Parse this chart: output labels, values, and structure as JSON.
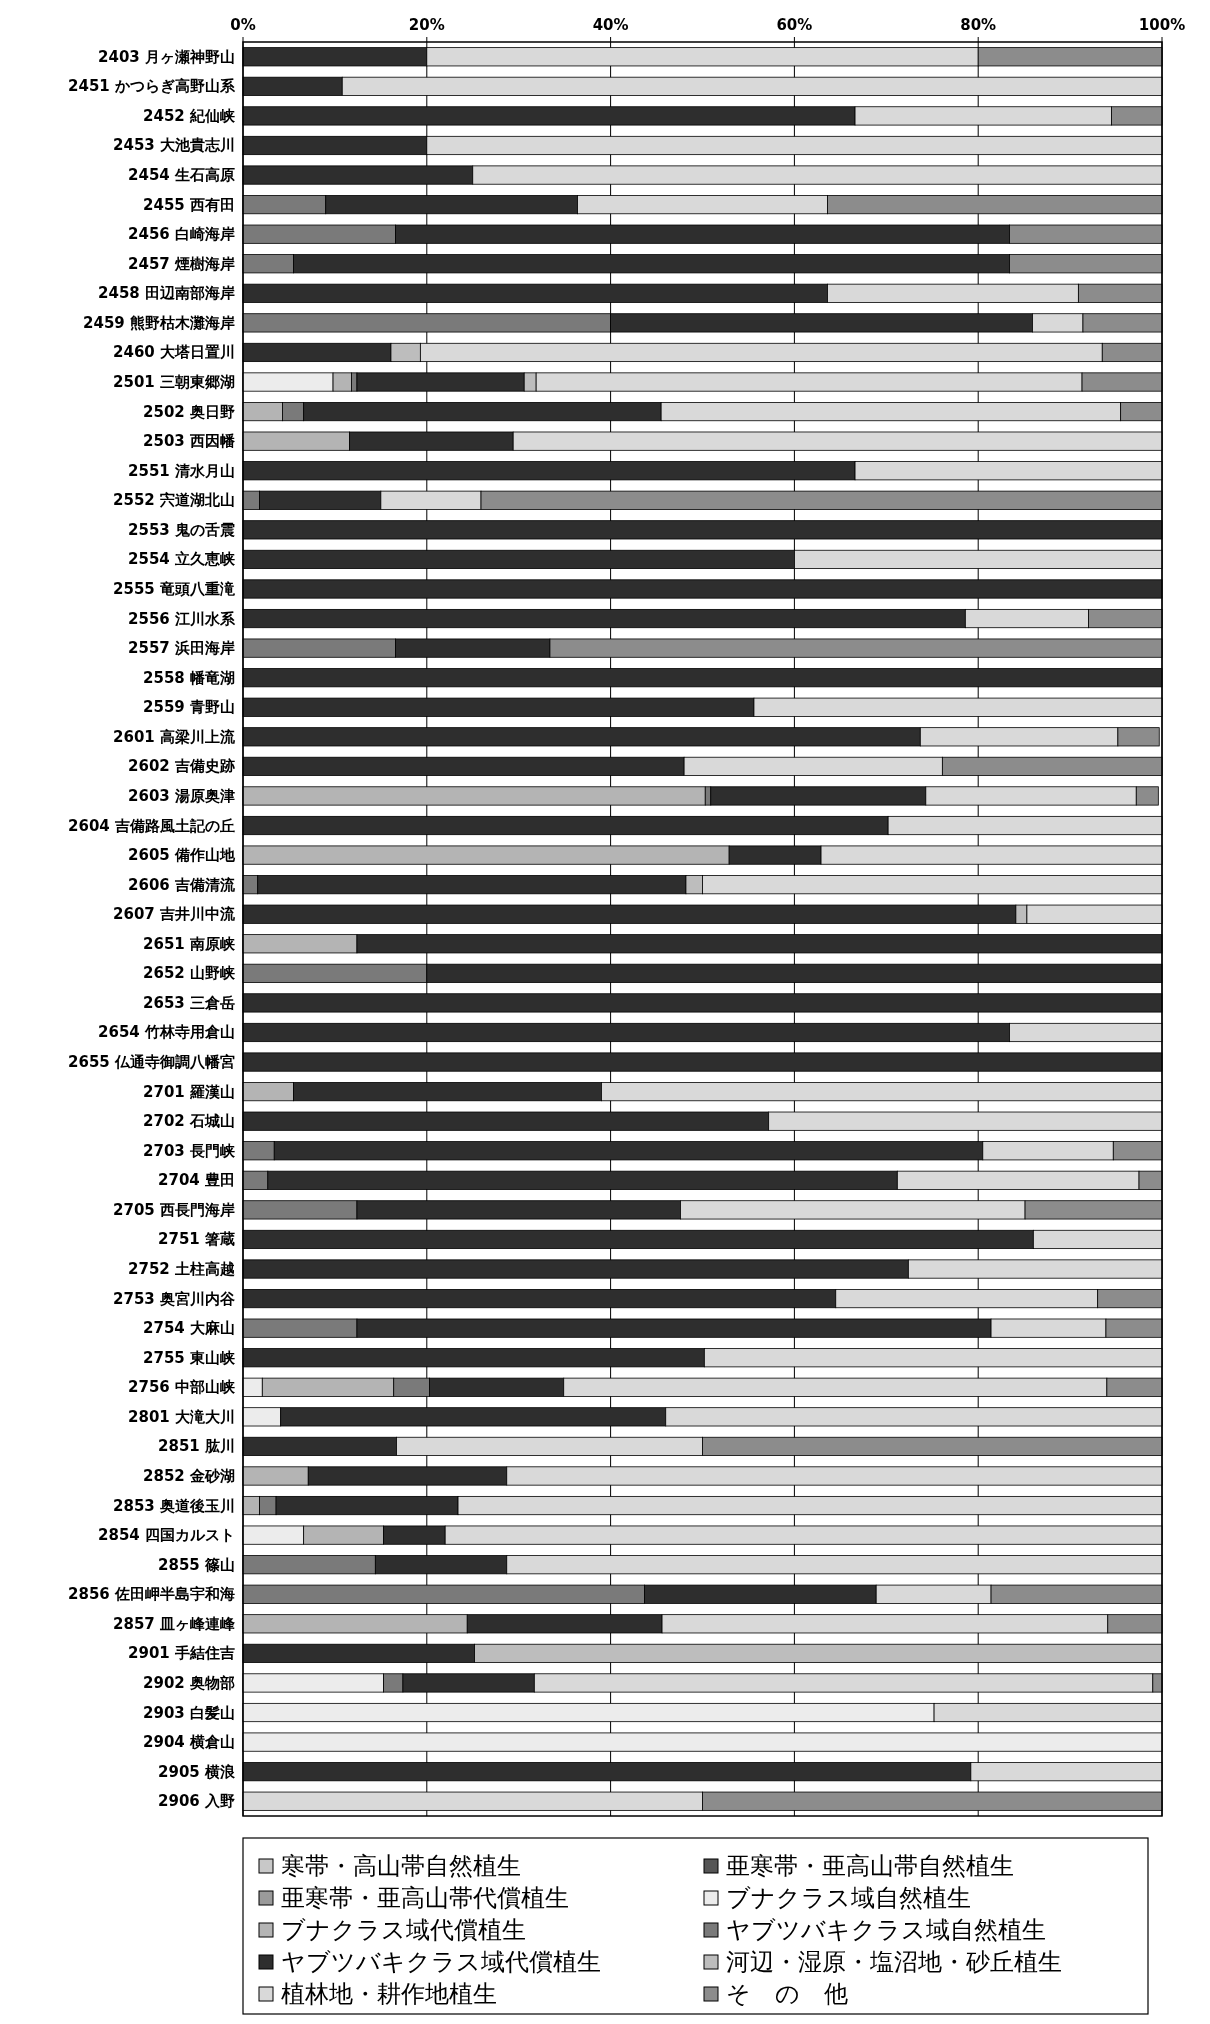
{
  "chart_data": {
    "type": "bar",
    "orientation": "horizontal",
    "stacked": true,
    "grid": "x",
    "legend": "bottom",
    "xlim": [
      0,
      100
    ],
    "xticks": [
      {
        "value": 0,
        "label": "0%"
      },
      {
        "value": 20,
        "label": "20%"
      },
      {
        "value": 40,
        "label": "40%"
      },
      {
        "value": 60,
        "label": "60%"
      },
      {
        "value": 80,
        "label": "80%"
      },
      {
        "value": 100,
        "label": "100%"
      }
    ],
    "categories": [
      "2403 月ヶ瀬神野山",
      "2451 かつらぎ高野山系",
      "2452 紀仙峡",
      "2453 大池貴志川",
      "2454 生石高原",
      "2455 西有田",
      "2456 白崎海岸",
      "2457 煙樹海岸",
      "2458 田辺南部海岸",
      "2459 熊野枯木灘海岸",
      "2460 大塔日置川",
      "2501 三朝東郷湖",
      "2502 奥日野",
      "2503 西因幡",
      "2551 清水月山",
      "2552 宍道湖北山",
      "2553 鬼の舌震",
      "2554 立久恵峡",
      "2555 竜頭八重滝",
      "2556 江川水系",
      "2557 浜田海岸",
      "2558 幡竜湖",
      "2559 青野山",
      "2601 高梁川上流",
      "2602 吉備史跡",
      "2603 湯原奥津",
      "2604 吉備路風土記の丘",
      "2605 備作山地",
      "2606 吉備清流",
      "2607 吉井川中流",
      "2651 南原峡",
      "2652 山野峡",
      "2653 三倉岳",
      "2654 竹林寺用倉山",
      "2655 仏通寺御調八幡宮",
      "2701 羅漢山",
      "2702 石城山",
      "2703 長門峡",
      "2704 豊田",
      "2705 西長門海岸",
      "2751 箸蔵",
      "2752 土柱高越",
      "2753 奥宮川内谷",
      "2754 大麻山",
      "2755 東山峡",
      "2756 中部山峡",
      "2801 大滝大川",
      "2851 肱川",
      "2852 金砂湖",
      "2853 奥道後玉川",
      "2854 四国カルスト",
      "2855 篠山",
      "2856 佐田岬半島宇和海",
      "2857 皿ヶ峰連峰",
      "2901 手結住吉",
      "2902 奥物部",
      "2903 白髪山",
      "2904 横倉山",
      "2905 横浪",
      "2906 入野"
    ],
    "series": [
      {
        "name": "寒帯・高山帯自然植生",
        "color": "#c8c8c8",
        "values": [
          0,
          0,
          0,
          0,
          0,
          0,
          0,
          0,
          0,
          0,
          0,
          0,
          0,
          0,
          0,
          0,
          0,
          0,
          0,
          0,
          0,
          0,
          0,
          0,
          0,
          0,
          0,
          0,
          0,
          0,
          0,
          0,
          0,
          0,
          0,
          0,
          0,
          0,
          0,
          0,
          0,
          0,
          0,
          0,
          0,
          0,
          0,
          0,
          0,
          0,
          0,
          0,
          0,
          0,
          0,
          0,
          0,
          0,
          0,
          0
        ]
      },
      {
        "name": "亜寒帯・亜高山帯自然植生",
        "color": "#555555",
        "values": [
          0,
          0,
          0,
          0,
          0,
          0,
          0,
          0,
          0,
          0,
          0,
          0,
          0,
          0,
          0,
          0,
          0,
          0,
          0,
          0,
          0,
          0,
          0,
          0,
          0,
          0,
          0,
          0,
          0,
          0,
          0,
          0,
          0,
          0,
          0,
          0,
          0,
          0,
          0,
          0,
          0,
          0,
          0,
          0,
          0,
          0,
          0,
          0,
          0,
          0,
          0,
          0,
          0,
          0,
          0,
          0,
          0,
          0,
          0,
          0
        ]
      },
      {
        "name": "亜寒帯・亜高山帯代償植生",
        "color": "#9a9a9a",
        "values": [
          0,
          0,
          0,
          0,
          0,
          0,
          0,
          0,
          0,
          0,
          0,
          0,
          0,
          0,
          0,
          0,
          0,
          0,
          0,
          0,
          0,
          0,
          0,
          0,
          0,
          0,
          0,
          0,
          0,
          0,
          0,
          0,
          0,
          0,
          0,
          0,
          0,
          0,
          0,
          0,
          0,
          0,
          0,
          0,
          0,
          0,
          0,
          0,
          0,
          0,
          0,
          0,
          0,
          0,
          0,
          0,
          0,
          0,
          0,
          0
        ]
      },
      {
        "name": "ブナクラス域自然植生",
        "color": "#ececec",
        "values": [
          0,
          0,
          0,
          0,
          0,
          0,
          0,
          0,
          0,
          0,
          0,
          9.8,
          0,
          0,
          0,
          0,
          0,
          0,
          0,
          0,
          0,
          0,
          0,
          0,
          0,
          null,
          0,
          0,
          0,
          0,
          0,
          0,
          0,
          0,
          0,
          0,
          0,
          0,
          0,
          0,
          0,
          0,
          0,
          0,
          0,
          2.1,
          4.1,
          0,
          0,
          0,
          6.6,
          0,
          0,
          0,
          0,
          15.3,
          75.2,
          100,
          0,
          0
        ]
      },
      {
        "name": "ブナクラス域代償植生",
        "color": "#b4b4b4",
        "values": [
          0,
          0,
          0,
          0,
          0,
          0,
          0,
          0,
          0,
          0,
          0,
          2.0,
          4.3,
          11.6,
          0,
          0,
          0,
          0,
          0,
          0,
          0,
          0,
          0,
          0,
          0,
          50.3,
          0,
          52.9,
          0,
          0,
          12.4,
          0,
          0,
          0,
          0,
          5.5,
          0,
          0,
          0,
          0,
          0,
          0,
          0,
          0,
          0,
          14.3,
          0,
          0,
          7.1,
          1.8,
          8.7,
          0,
          0,
          24.4,
          0,
          0,
          0,
          0,
          0,
          0
        ]
      },
      {
        "name": "ヤブツバキクラス域自然植生",
        "color": "#7a7a7a",
        "values": [
          0,
          0,
          0,
          0,
          0,
          9,
          16.6,
          5.5,
          0,
          40,
          0,
          0.6,
          2.3,
          0,
          0,
          1.8,
          0,
          0,
          0,
          0,
          16.6,
          0,
          0,
          null,
          0,
          0.6,
          0,
          0,
          1.6,
          0,
          0,
          20,
          0,
          0,
          0,
          0,
          0,
          3.4,
          2.7,
          12.4,
          0,
          0,
          0,
          12.4,
          0,
          3.9,
          0,
          0,
          0,
          1.8,
          0,
          14.4,
          43.7,
          0,
          0,
          2.1,
          0,
          0,
          0,
          0
        ]
      },
      {
        "name": "ヤブツバキクラス域代償植生",
        "color": "#2e2e2e",
        "values": [
          20,
          10.8,
          66.6,
          20,
          25,
          27.4,
          66.8,
          77.9,
          63.6,
          45.9,
          16.1,
          18.2,
          38.9,
          17.8,
          66.6,
          13.2,
          100,
          60,
          100,
          78.6,
          16.8,
          100,
          55.6,
          73.7,
          48,
          23.4,
          70.2,
          10,
          46.6,
          84.1,
          87.6,
          80,
          100,
          83.4,
          100,
          33.5,
          57.2,
          77.1,
          68.5,
          35.2,
          86,
          72.4,
          64.5,
          69,
          50.2,
          14.6,
          41.9,
          16.7,
          21.6,
          19.8,
          6.7,
          14.3,
          25.2,
          21.2,
          25.2,
          14.3,
          0,
          0,
          79.2,
          0
        ]
      },
      {
        "name": "河辺・湿原・塩沼地・砂丘植生",
        "color": "#bdbdbd",
        "values": [
          0,
          0,
          0,
          0,
          0,
          0,
          0,
          0,
          0,
          0,
          3.2,
          1.3,
          0,
          0,
          0,
          0,
          0,
          0,
          0,
          0,
          0,
          0,
          0,
          0,
          0,
          0,
          0,
          0,
          1.8,
          1.2,
          0,
          0,
          0,
          0,
          0,
          0,
          0,
          0,
          0,
          0,
          0,
          0,
          0,
          0,
          0,
          0,
          0,
          0,
          0,
          0,
          0,
          0,
          0,
          0,
          74.8,
          0,
          0,
          0,
          0,
          0
        ]
      },
      {
        "name": "植林地・耕作地植生",
        "color": "#d9d9d9",
        "values": [
          60,
          89.2,
          27.9,
          80,
          75,
          27.2,
          0,
          0,
          27.3,
          5.5,
          74.2,
          59.4,
          50,
          70.6,
          33.4,
          10.9,
          0,
          40,
          0,
          13.4,
          0,
          0,
          44.4,
          21.5,
          28.1,
          22.9,
          29.8,
          37.1,
          50,
          14.7,
          0,
          0,
          0,
          16.6,
          0,
          61,
          42.8,
          14.2,
          26.3,
          37.5,
          14,
          27.6,
          28.5,
          12.5,
          49.8,
          59.1,
          54,
          33.3,
          71.3,
          76.6,
          78,
          71.3,
          12.5,
          48.5,
          0,
          67.3,
          24.8,
          0,
          20.8,
          50
        ]
      },
      {
        "name": "そ　の　他",
        "color": "#8c8c8c",
        "values": [
          20,
          0,
          5.5,
          0,
          0,
          36.4,
          16.6,
          16.6,
          9.1,
          8.6,
          6.5,
          8.7,
          4.5,
          0,
          0,
          74.1,
          0,
          0,
          0,
          8.0,
          66.6,
          0,
          0,
          4.5,
          23.9,
          2.4,
          0,
          0,
          0,
          0,
          0,
          0,
          0,
          0,
          0,
          0,
          0,
          5.3,
          2.5,
          14.9,
          0,
          0,
          7,
          6.1,
          0,
          6,
          0,
          50,
          0,
          0,
          0,
          0,
          18.6,
          5.9,
          0,
          1,
          0,
          0,
          0,
          50
        ]
      }
    ]
  }
}
